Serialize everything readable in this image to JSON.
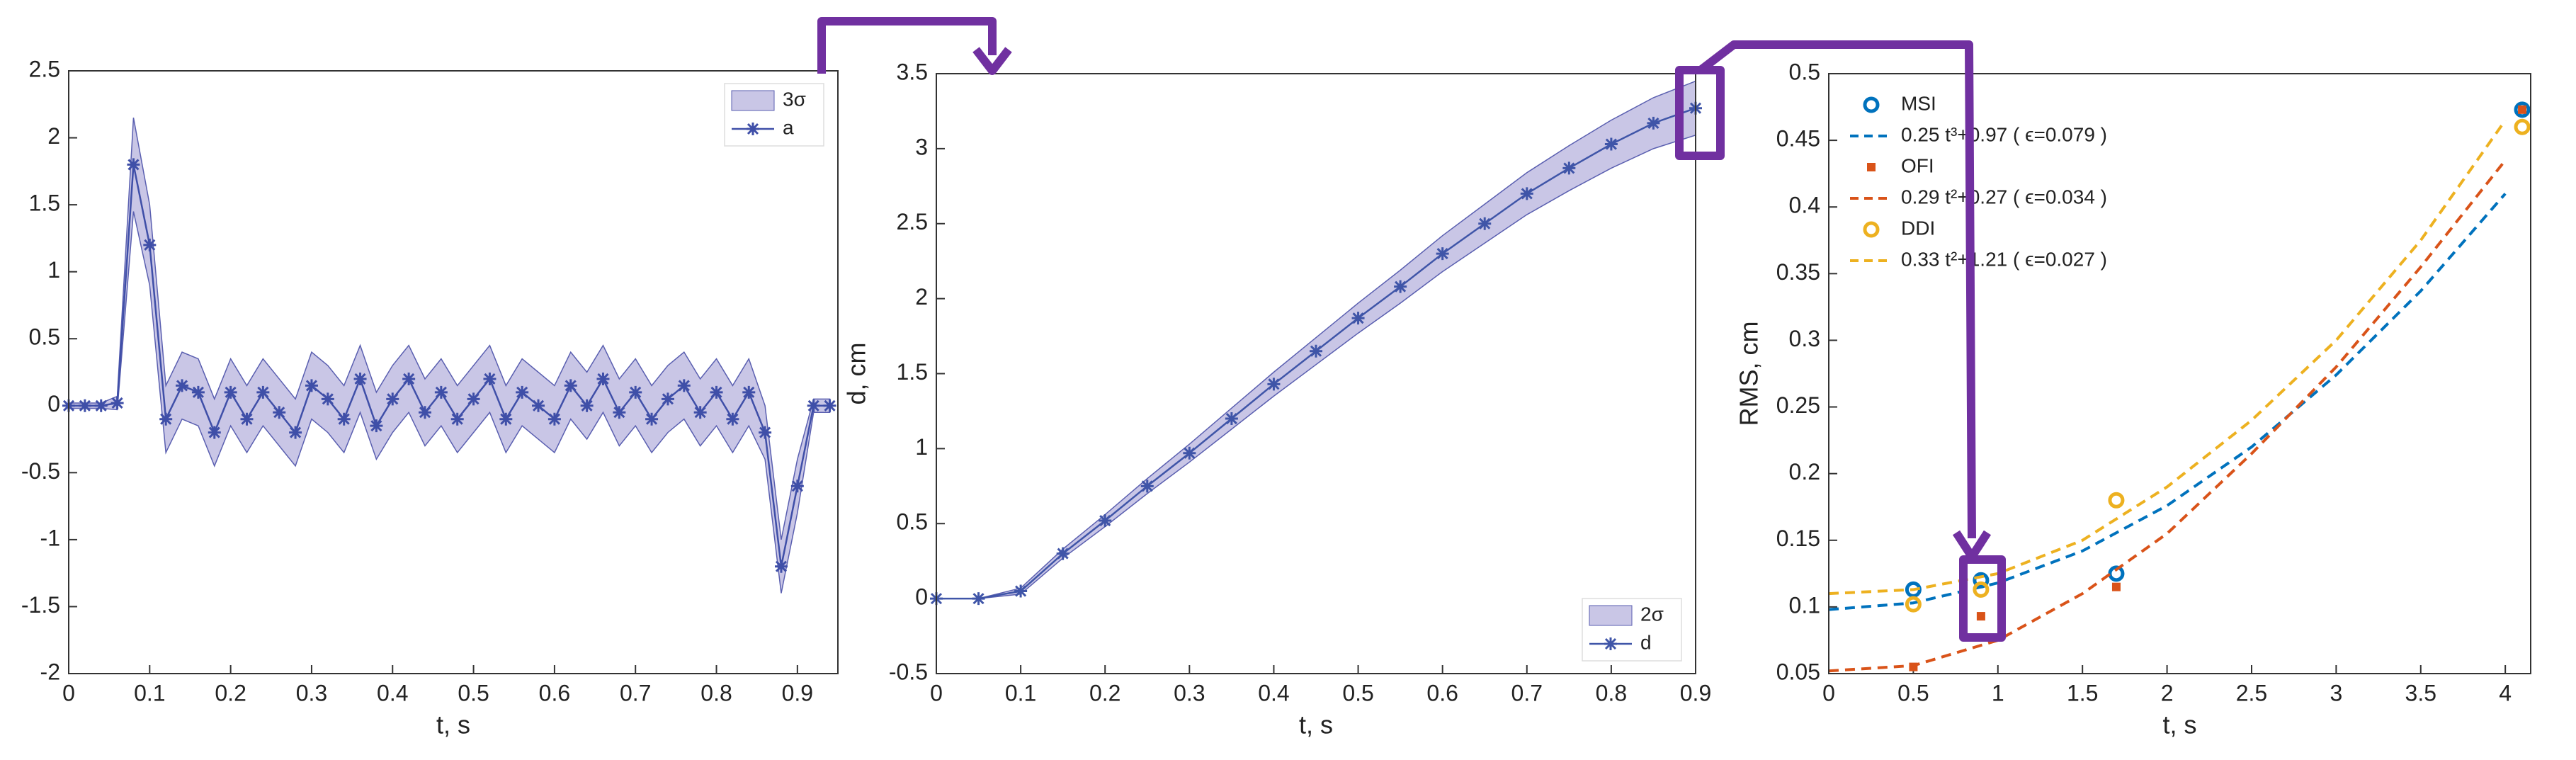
{
  "charts": [
    {
      "type": "line",
      "xlabel": "t, s",
      "xlim": [
        0,
        0.95
      ],
      "ylim": [
        -2,
        2.5
      ],
      "xticks": [
        0,
        0.1,
        0.2,
        0.3,
        0.4,
        0.5,
        0.6,
        0.7,
        0.8,
        0.9
      ],
      "yticks": [
        -2,
        -1.5,
        -1,
        -0.5,
        0,
        0.5,
        1,
        1.5,
        2,
        2.5
      ],
      "legend": "northeast",
      "x": [
        0,
        0.02,
        0.04,
        0.06,
        0.08,
        0.1,
        0.12,
        0.14,
        0.16,
        0.18,
        0.2,
        0.22,
        0.24,
        0.26,
        0.28,
        0.3,
        0.32,
        0.34,
        0.36,
        0.38,
        0.4,
        0.42,
        0.44,
        0.46,
        0.48,
        0.5,
        0.52,
        0.54,
        0.56,
        0.58,
        0.6,
        0.62,
        0.64,
        0.66,
        0.68,
        0.7,
        0.72,
        0.74,
        0.76,
        0.78,
        0.8,
        0.82,
        0.84,
        0.86,
        0.88,
        0.9,
        0.92,
        0.94
      ],
      "band": {
        "name": "3σ",
        "color": "#c9c6e6",
        "upper": [
          0.02,
          0.02,
          0.02,
          0.07,
          2.15,
          1.5,
          0.15,
          0.4,
          0.35,
          0.05,
          0.35,
          0.15,
          0.35,
          0.2,
          0.05,
          0.4,
          0.3,
          0.15,
          0.45,
          0.1,
          0.3,
          0.45,
          0.2,
          0.35,
          0.15,
          0.3,
          0.45,
          0.15,
          0.35,
          0.25,
          0.15,
          0.4,
          0.25,
          0.45,
          0.2,
          0.35,
          0.15,
          0.3,
          0.4,
          0.2,
          0.35,
          0.15,
          0.35,
          0,
          -1,
          -0.4,
          0.05,
          0.05
        ],
        "lower": [
          -0.02,
          -0.02,
          -0.02,
          -0.03,
          1.45,
          0.9,
          -0.35,
          -0.1,
          -0.15,
          -0.45,
          -0.15,
          -0.35,
          -0.15,
          -0.3,
          -0.45,
          -0.1,
          -0.2,
          -0.35,
          -0.05,
          -0.4,
          -0.2,
          -0.05,
          -0.3,
          -0.15,
          -0.35,
          -0.2,
          -0.05,
          -0.35,
          -0.15,
          -0.25,
          -0.35,
          -0.1,
          -0.25,
          -0.05,
          -0.3,
          -0.15,
          -0.35,
          -0.2,
          -0.1,
          -0.3,
          -0.15,
          -0.35,
          -0.15,
          -0.4,
          -1.4,
          -0.8,
          -0.05,
          -0.05
        ]
      },
      "series": [
        {
          "name": "a",
          "color": "#3f4fa8",
          "marker": "star",
          "values": [
            0,
            0,
            0,
            0.02,
            1.8,
            1.2,
            -0.1,
            0.15,
            0.1,
            -0.2,
            0.1,
            -0.1,
            0.1,
            -0.05,
            -0.2,
            0.15,
            0.05,
            -0.1,
            0.2,
            -0.15,
            0.05,
            0.2,
            -0.05,
            0.1,
            -0.1,
            0.05,
            0.2,
            -0.1,
            0.1,
            0,
            -0.1,
            0.15,
            0,
            0.2,
            -0.05,
            0.1,
            -0.1,
            0.05,
            0.15,
            -0.05,
            0.1,
            -0.1,
            0.1,
            -0.2,
            -1.2,
            -0.6,
            0,
            0
          ]
        }
      ]
    },
    {
      "type": "line",
      "xlabel": "t, s",
      "ylabel": "d, cm",
      "xlim": [
        0,
        0.9
      ],
      "ylim": [
        -0.5,
        3.5
      ],
      "xticks": [
        0,
        0.1,
        0.2,
        0.3,
        0.4,
        0.5,
        0.6,
        0.7,
        0.8,
        0.9
      ],
      "yticks": [
        -0.5,
        0,
        0.5,
        1,
        1.5,
        2,
        2.5,
        3,
        3.5
      ],
      "legend": "southeast",
      "x": [
        0,
        0.05,
        0.1,
        0.15,
        0.2,
        0.25,
        0.3,
        0.35,
        0.4,
        0.45,
        0.5,
        0.55,
        0.6,
        0.65,
        0.7,
        0.75,
        0.8,
        0.85,
        0.9
      ],
      "band": {
        "name": "2σ",
        "color": "#c9c6e6",
        "upper": [
          0,
          0,
          0.07,
          0.33,
          0.56,
          0.8,
          1.03,
          1.27,
          1.51,
          1.74,
          1.97,
          2.19,
          2.42,
          2.63,
          2.84,
          3.02,
          3.19,
          3.34,
          3.45
        ],
        "lower": [
          0,
          0,
          0.03,
          0.27,
          0.48,
          0.7,
          0.91,
          1.13,
          1.35,
          1.56,
          1.77,
          1.97,
          2.18,
          2.37,
          2.56,
          2.72,
          2.87,
          3.0,
          3.09
        ]
      },
      "series": [
        {
          "name": "d",
          "color": "#3f55a8",
          "marker": "star",
          "values": [
            0,
            0,
            0.05,
            0.3,
            0.52,
            0.75,
            0.97,
            1.2,
            1.43,
            1.65,
            1.87,
            2.08,
            2.3,
            2.5,
            2.7,
            2.87,
            3.03,
            3.17,
            3.27
          ]
        }
      ]
    },
    {
      "type": "scatter",
      "xlabel": "t, s",
      "ylabel": "RMS, cm",
      "xlim": [
        0,
        4.15
      ],
      "ylim": [
        0.05,
        0.5
      ],
      "xticks": [
        0,
        0.5,
        1,
        1.5,
        2,
        2.5,
        3,
        3.5,
        4
      ],
      "yticks": [
        0.05,
        0.1,
        0.15,
        0.2,
        0.25,
        0.3,
        0.35,
        0.4,
        0.45,
        0.5
      ],
      "legend": "northwest",
      "series": [
        {
          "name": "MSI",
          "color": "#0072bd",
          "marker": "circle",
          "x": [
            0.5,
            0.9,
            1.7,
            4.1
          ],
          "values": [
            0.113,
            0.12,
            0.125,
            0.473
          ]
        },
        {
          "name": "0.25 t³+0.97 ( ϵ=0.079 )",
          "color": "#0072bd",
          "marker": "dash",
          "x": [
            0,
            0.5,
            1,
            1.5,
            2,
            2.5,
            3,
            3.5,
            4
          ],
          "values": [
            0.098,
            0.103,
            0.118,
            0.142,
            0.176,
            0.22,
            0.274,
            0.337,
            0.41
          ]
        },
        {
          "name": "OFI",
          "color": "#d95319",
          "marker": "square",
          "x": [
            0.5,
            0.9,
            1.7,
            4.1
          ],
          "values": [
            0.055,
            0.093,
            0.115,
            0.473
          ]
        },
        {
          "name": "0.29 t²+0.27 ( ϵ=0.034 )",
          "color": "#d95319",
          "marker": "dash",
          "x": [
            0,
            0.5,
            1,
            1.5,
            2,
            2.5,
            3,
            3.5,
            4
          ],
          "values": [
            0.052,
            0.056,
            0.075,
            0.11,
            0.155,
            0.215,
            0.28,
            0.355,
            0.435
          ]
        },
        {
          "name": "DDI",
          "color": "#edb120",
          "marker": "circle",
          "x": [
            0.5,
            0.9,
            1.7,
            4.1
          ],
          "values": [
            0.102,
            0.113,
            0.18,
            0.46
          ]
        },
        {
          "name": "0.33 t²+1.21 ( ϵ=0.027 )",
          "color": "#edb120",
          "marker": "dash",
          "x": [
            0,
            0.5,
            1,
            1.5,
            2,
            2.5,
            3,
            3.5,
            4
          ],
          "values": [
            0.11,
            0.113,
            0.125,
            0.15,
            0.19,
            0.24,
            0.3,
            0.375,
            0.465
          ]
        }
      ]
    }
  ]
}
